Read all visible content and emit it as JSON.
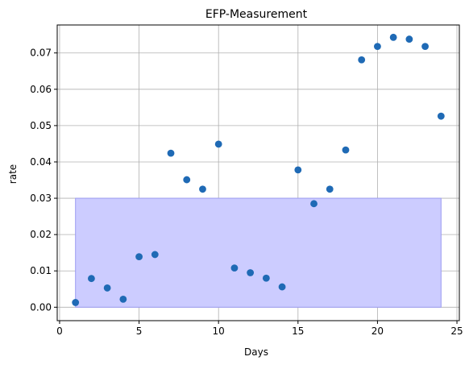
{
  "chart_data": {
    "type": "scatter",
    "title": "EFP-Measurement",
    "xlabel": "Days",
    "ylabel": "rate",
    "xlim": [
      -0.15,
      25.15
    ],
    "ylim": [
      -0.0037,
      0.0777
    ],
    "grid": true,
    "x_ticks": [
      0,
      5,
      10,
      15,
      20,
      25
    ],
    "y_ticks": [
      0.0,
      0.01,
      0.02,
      0.03,
      0.04,
      0.05,
      0.06,
      0.07
    ],
    "x_tick_labels": [
      "0",
      "5",
      "10",
      "15",
      "20",
      "25"
    ],
    "y_tick_labels": [
      "0.00",
      "0.01",
      "0.02",
      "0.03",
      "0.04",
      "0.05",
      "0.06",
      "0.07"
    ],
    "shaded_region": {
      "x": [
        1,
        24
      ],
      "y": [
        0,
        0.03
      ],
      "color": "#ccccff"
    },
    "series": [
      {
        "color": "#1f6ab5",
        "points": [
          {
            "x": 1,
            "y": 0.0013
          },
          {
            "x": 2,
            "y": 0.0079
          },
          {
            "x": 3,
            "y": 0.0053
          },
          {
            "x": 4,
            "y": 0.0022
          },
          {
            "x": 5,
            "y": 0.0139
          },
          {
            "x": 6,
            "y": 0.0145
          },
          {
            "x": 7,
            "y": 0.0424
          },
          {
            "x": 8,
            "y": 0.0351
          },
          {
            "x": 9,
            "y": 0.0325
          },
          {
            "x": 10,
            "y": 0.0449
          },
          {
            "x": 11,
            "y": 0.0108
          },
          {
            "x": 12,
            "y": 0.0095
          },
          {
            "x": 13,
            "y": 0.008
          },
          {
            "x": 14,
            "y": 0.0056
          },
          {
            "x": 15,
            "y": 0.0378
          },
          {
            "x": 16,
            "y": 0.0285
          },
          {
            "x": 17,
            "y": 0.0325
          },
          {
            "x": 18,
            "y": 0.0433
          },
          {
            "x": 19,
            "y": 0.0681
          },
          {
            "x": 20,
            "y": 0.0718
          },
          {
            "x": 21,
            "y": 0.0743
          },
          {
            "x": 22,
            "y": 0.0738
          },
          {
            "x": 23,
            "y": 0.0718
          },
          {
            "x": 24,
            "y": 0.0526
          }
        ]
      }
    ]
  }
}
